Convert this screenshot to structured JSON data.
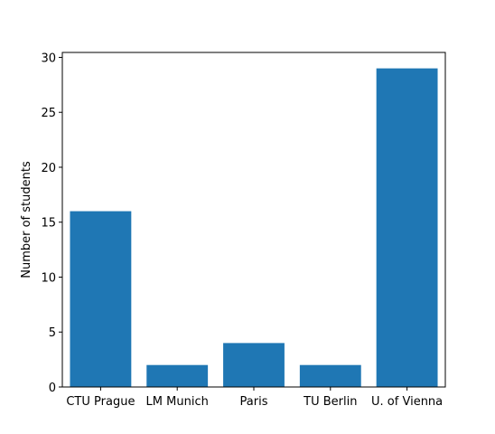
{
  "chart_data": {
    "type": "bar",
    "title": "",
    "xlabel": "",
    "ylabel": "Number of students",
    "categories": [
      "CTU Prague",
      "LM Munich",
      "Paris",
      "TU Berlin",
      "U. of Vienna"
    ],
    "values": [
      16,
      2,
      4,
      2,
      29
    ],
    "ylim": [
      0,
      30.45
    ],
    "yticks": [
      0,
      5,
      10,
      15,
      20,
      25,
      30
    ],
    "bar_color": "#1f77b4",
    "grid": false,
    "legend": "none"
  }
}
